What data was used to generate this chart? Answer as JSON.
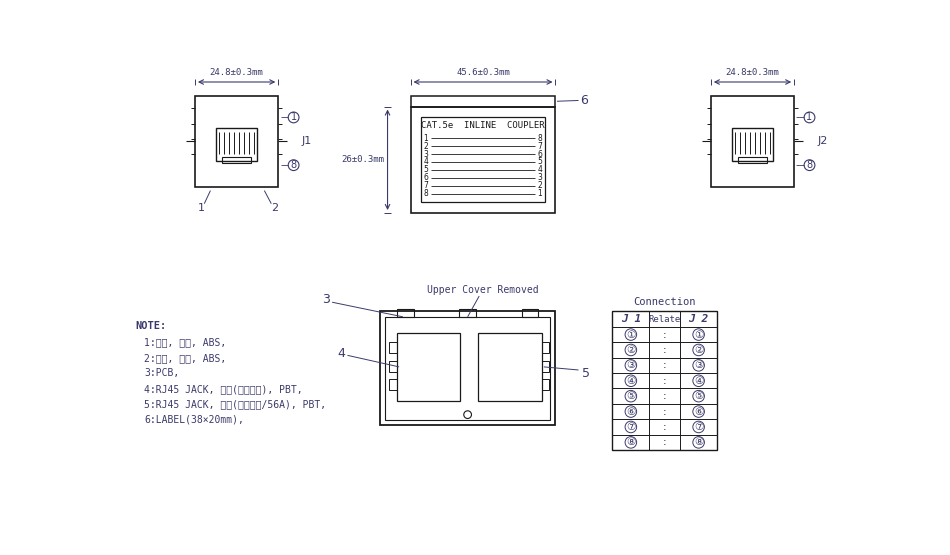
{
  "bg_color": "#ffffff",
  "line_color": "#1a1a1a",
  "dim_color": "#3a3a6a",
  "note_color": "#3a3a6a",
  "title_connection": "Connection",
  "dim1": "24.8±0.3mm",
  "dim2": "45.6±0.3mm",
  "dim3": "24.8±0.3mm",
  "dim4": "26±0.3mm",
  "label_text": "CAT.5e  INLINE  COUPLER",
  "label_j1": "J1",
  "label_j2": "J2",
  "upper_cover": "Upper Cover Removed",
  "note_title": "NOTE:",
  "notes": [
    "1:上盖, 黑色, ABS,",
    "2:下盖, 黑色, ABS,",
    "3:PCB,",
    "4:RJ45 JACK, 黑色(白色支架), PBT,",
    "5:RJ45 JACK, 黑色(黑色支架/56A), PBT,",
    "6:LABEL(38×20mm),"
  ],
  "connection_headers": [
    "J 1",
    "Relate",
    "J 2"
  ],
  "connection_rows": [
    [
      "①",
      ":",
      "①"
    ],
    [
      "②",
      ":",
      "②"
    ],
    [
      "③",
      ":",
      "③"
    ],
    [
      "④",
      ":",
      "④"
    ],
    [
      "⑤",
      ":",
      "⑤"
    ],
    [
      "⑥",
      ":",
      "⑥"
    ],
    [
      "⑦",
      ":",
      "⑦"
    ],
    [
      "⑧",
      ":",
      "⑧"
    ]
  ]
}
